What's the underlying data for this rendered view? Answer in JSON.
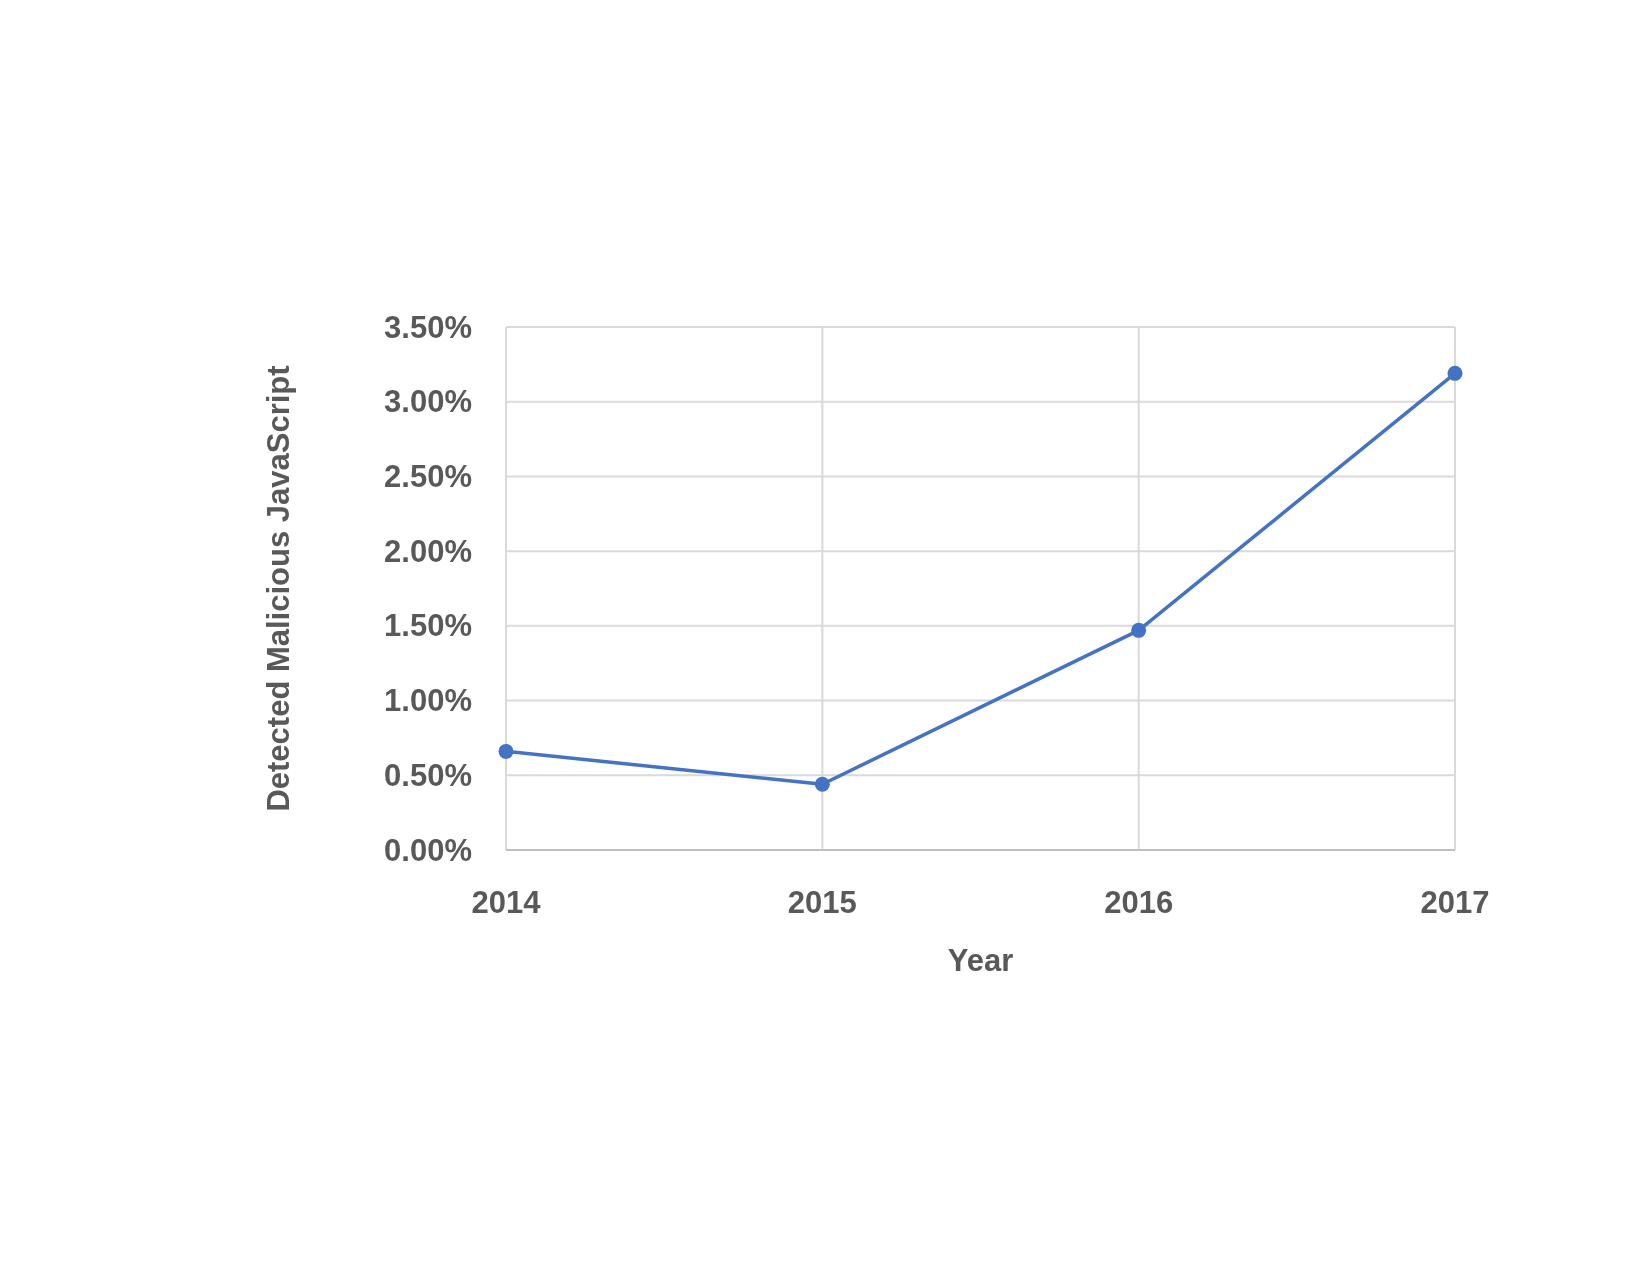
{
  "chart_data": {
    "type": "line",
    "xlabel": "Year",
    "ylabel": "Detected Malicious JavaScript",
    "x": [
      2014,
      2015,
      2016,
      2017
    ],
    "series": [
      {
        "color": "#4472c4",
        "values": [
          0.66,
          0.44,
          1.47,
          3.19
        ]
      }
    ],
    "xlim": [
      2014,
      2017
    ],
    "xticks": [
      2014,
      2015,
      2016,
      2017
    ],
    "ylim": [
      0,
      3.5
    ],
    "yticks": [
      {
        "value": 0,
        "label": "0.00%"
      },
      {
        "value": 0.5,
        "label": "0.50%"
      },
      {
        "value": 1,
        "label": "1.00%"
      },
      {
        "value": 1.5,
        "label": "1.50%"
      },
      {
        "value": 2,
        "label": "2.00%"
      },
      {
        "value": 2.5,
        "label": "2.50%"
      },
      {
        "value": 3,
        "label": "3.00%"
      },
      {
        "value": 3.5,
        "label": "3.50%"
      }
    ],
    "grid": true,
    "marker": "circle",
    "line_style": "solid"
  }
}
